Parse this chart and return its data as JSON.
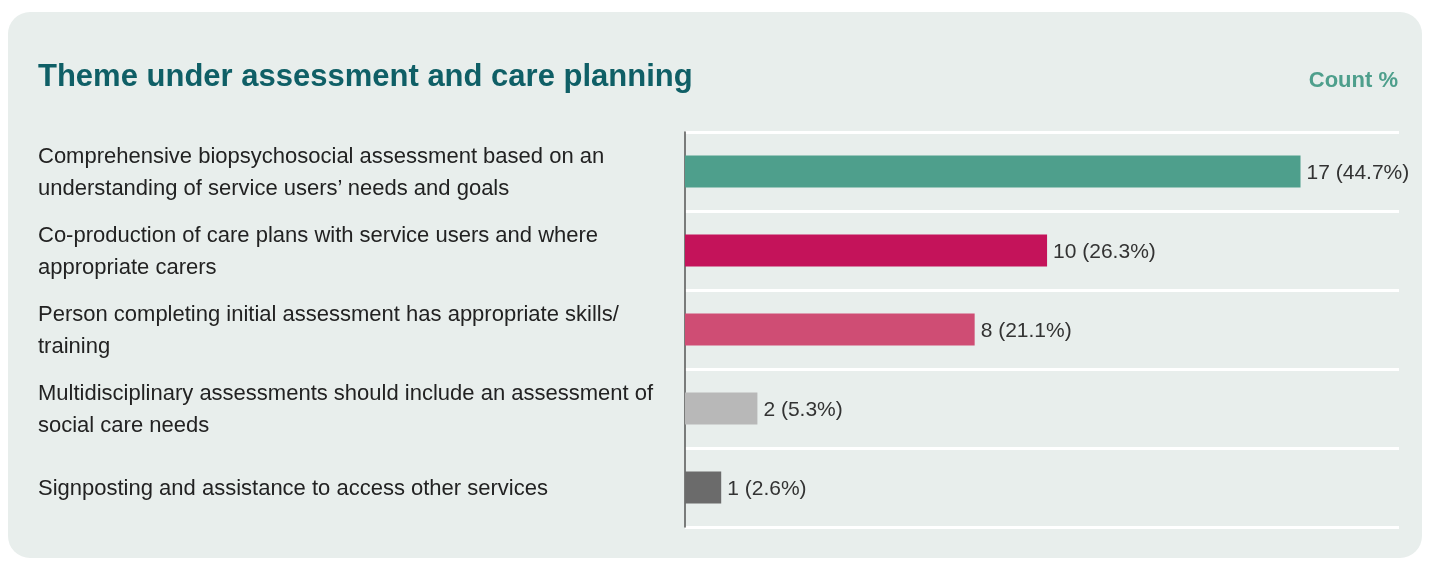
{
  "chart_data": {
    "type": "bar",
    "orientation": "horizontal",
    "title": "Theme under assessment and care planning",
    "subtitle": "Count %",
    "categories": [
      "Comprehensive biopsychosocial assessment based on an understanding of service users’ needs and goals",
      "Co-production of care plans with service users and where appropriate carers",
      "Person completing initial assessment has appropriate skills/training",
      "Multidisciplinary assessments should include an assessment of social care needs",
      "Signposting and assistance to access other services"
    ],
    "values": [
      17,
      10,
      8,
      2,
      1
    ],
    "colors": [
      "#4e9f8c",
      "#c4135a",
      "#cf4d74",
      "#b8b8b8",
      "#6b6b6b"
    ],
    "value_labels": [
      "17 (44.7%)",
      "10 (26.3%)",
      "8 (21.1%)",
      "2 (5.3%)",
      "1 (2.6%)"
    ],
    "grid": "y"
  }
}
